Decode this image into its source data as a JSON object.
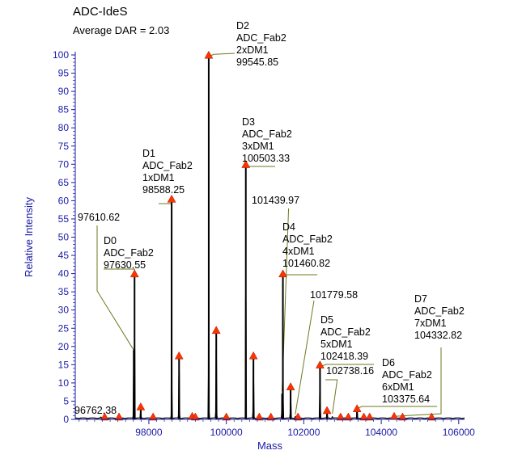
{
  "chart_data": {
    "type": "line",
    "title": "ADC-IdeS",
    "subtitle": "Average DAR = 2.03",
    "xlabel": "Mass",
    "ylabel": "Relative Intensity",
    "xlim": [
      96100,
      106150
    ],
    "ylim": [
      0,
      100
    ],
    "x_ticks": [
      "98000",
      "100000",
      "102000",
      "104000",
      "106000"
    ],
    "y_ticks": [
      "0",
      "5",
      "10",
      "15",
      "20",
      "25",
      "30",
      "35",
      "40",
      "45",
      "50",
      "55",
      "60",
      "65",
      "70",
      "75",
      "80",
      "85",
      "90",
      "95",
      "100"
    ],
    "colors": {
      "axis": "#1a1aa6",
      "trace": "#000000",
      "marker": "#ff3300",
      "callout": "#6b7a1e"
    },
    "peaks": [
      {
        "x": 96762.38,
        "y": 0.3,
        "labeled": true
      },
      {
        "x": 97610.62,
        "y": 19.0,
        "labeled": true
      },
      {
        "x": 97630.55,
        "y": 39.5,
        "labeled": true,
        "marker": true
      },
      {
        "x": 97790,
        "y": 3.0,
        "marker": true
      },
      {
        "x": 98588.25,
        "y": 60.0,
        "labeled": true,
        "marker": true
      },
      {
        "x": 98780,
        "y": 17.0,
        "marker": true
      },
      {
        "x": 99120,
        "y": 0.4,
        "marker": true
      },
      {
        "x": 99545.85,
        "y": 99.5,
        "labeled": true,
        "marker": true
      },
      {
        "x": 99740,
        "y": 24.0,
        "marker": true
      },
      {
        "x": 100503.33,
        "y": 69.5,
        "labeled": true,
        "marker": true
      },
      {
        "x": 100700,
        "y": 17.0,
        "marker": true
      },
      {
        "x": 101439.97,
        "y": 7.0,
        "labeled": true
      },
      {
        "x": 101460.82,
        "y": 39.5,
        "labeled": true,
        "marker": true
      },
      {
        "x": 101660,
        "y": 8.5,
        "marker": true
      },
      {
        "x": 101779.58,
        "y": 0.5,
        "labeled": true
      },
      {
        "x": 102418.39,
        "y": 14.5,
        "labeled": true,
        "marker": true
      },
      {
        "x": 102600,
        "y": 2.0,
        "marker": true
      },
      {
        "x": 102738.16,
        "y": 0.5,
        "labeled": true
      },
      {
        "x": 103375.64,
        "y": 2.5,
        "labeled": true,
        "marker": true
      },
      {
        "x": 104332.82,
        "y": 0.4,
        "labeled": true,
        "marker": true
      }
    ],
    "minor_markers": [
      96860,
      97230,
      98110,
      99200,
      100000,
      100850,
      101150,
      101850,
      102950,
      103150,
      103550,
      103700,
      104550,
      105300
    ],
    "annotations": [
      {
        "id": "d0",
        "species": "D0",
        "glycoform": "ADC_Fab2",
        "mass": "97630.55",
        "x": 97630.55,
        "y": 39.5
      },
      {
        "id": "d1",
        "species": "D1",
        "glycoform": "ADC_Fab2",
        "drug": "1xDM1",
        "mass": "98588.25",
        "x": 98588.25,
        "y": 60.0
      },
      {
        "id": "d2",
        "species": "D2",
        "glycoform": "ADC_Fab2",
        "drug": "2xDM1",
        "mass": "99545.85",
        "x": 99545.85,
        "y": 99.5
      },
      {
        "id": "d3",
        "species": "D3",
        "glycoform": "ADC_Fab2",
        "drug": "3xDM1",
        "mass": "100503.33",
        "x": 100503.33,
        "y": 69.5
      },
      {
        "id": "d4",
        "species": "D4",
        "glycoform": "ADC_Fab2",
        "drug": "4xDM1",
        "mass": "101460.82",
        "x": 101460.82,
        "y": 39.5
      },
      {
        "id": "d5",
        "species": "D5",
        "glycoform": "ADC_Fab2",
        "drug": "5xDM1",
        "mass": "102418.39",
        "x": 102418.39,
        "y": 14.5
      },
      {
        "id": "d6",
        "species": "D6",
        "glycoform": "ADC_Fab2",
        "drug": "6xDM1",
        "mass": "103375.64",
        "x": 103375.64,
        "y": 2.5
      },
      {
        "id": "d7",
        "species": "D7",
        "glycoform": "ADC_Fab2",
        "drug": "7xDM1",
        "mass": "104332.82",
        "x": 104332.82,
        "y": 0.4
      }
    ],
    "mass_labels": [
      {
        "id": "m97610",
        "text": "97610.62",
        "x": 97610.62,
        "y": 19.0
      },
      {
        "id": "m101439",
        "text": "101439.97",
        "x": 101439.97,
        "y": 7.0
      },
      {
        "id": "m101779",
        "text": "101779.58",
        "x": 101779.58,
        "y": 0.5
      },
      {
        "id": "m102738",
        "text": "102738.16",
        "x": 102738.16,
        "y": 0.5
      },
      {
        "id": "m96762",
        "text": "96762.38",
        "x": 96762.38,
        "y": 0.3
      }
    ]
  }
}
